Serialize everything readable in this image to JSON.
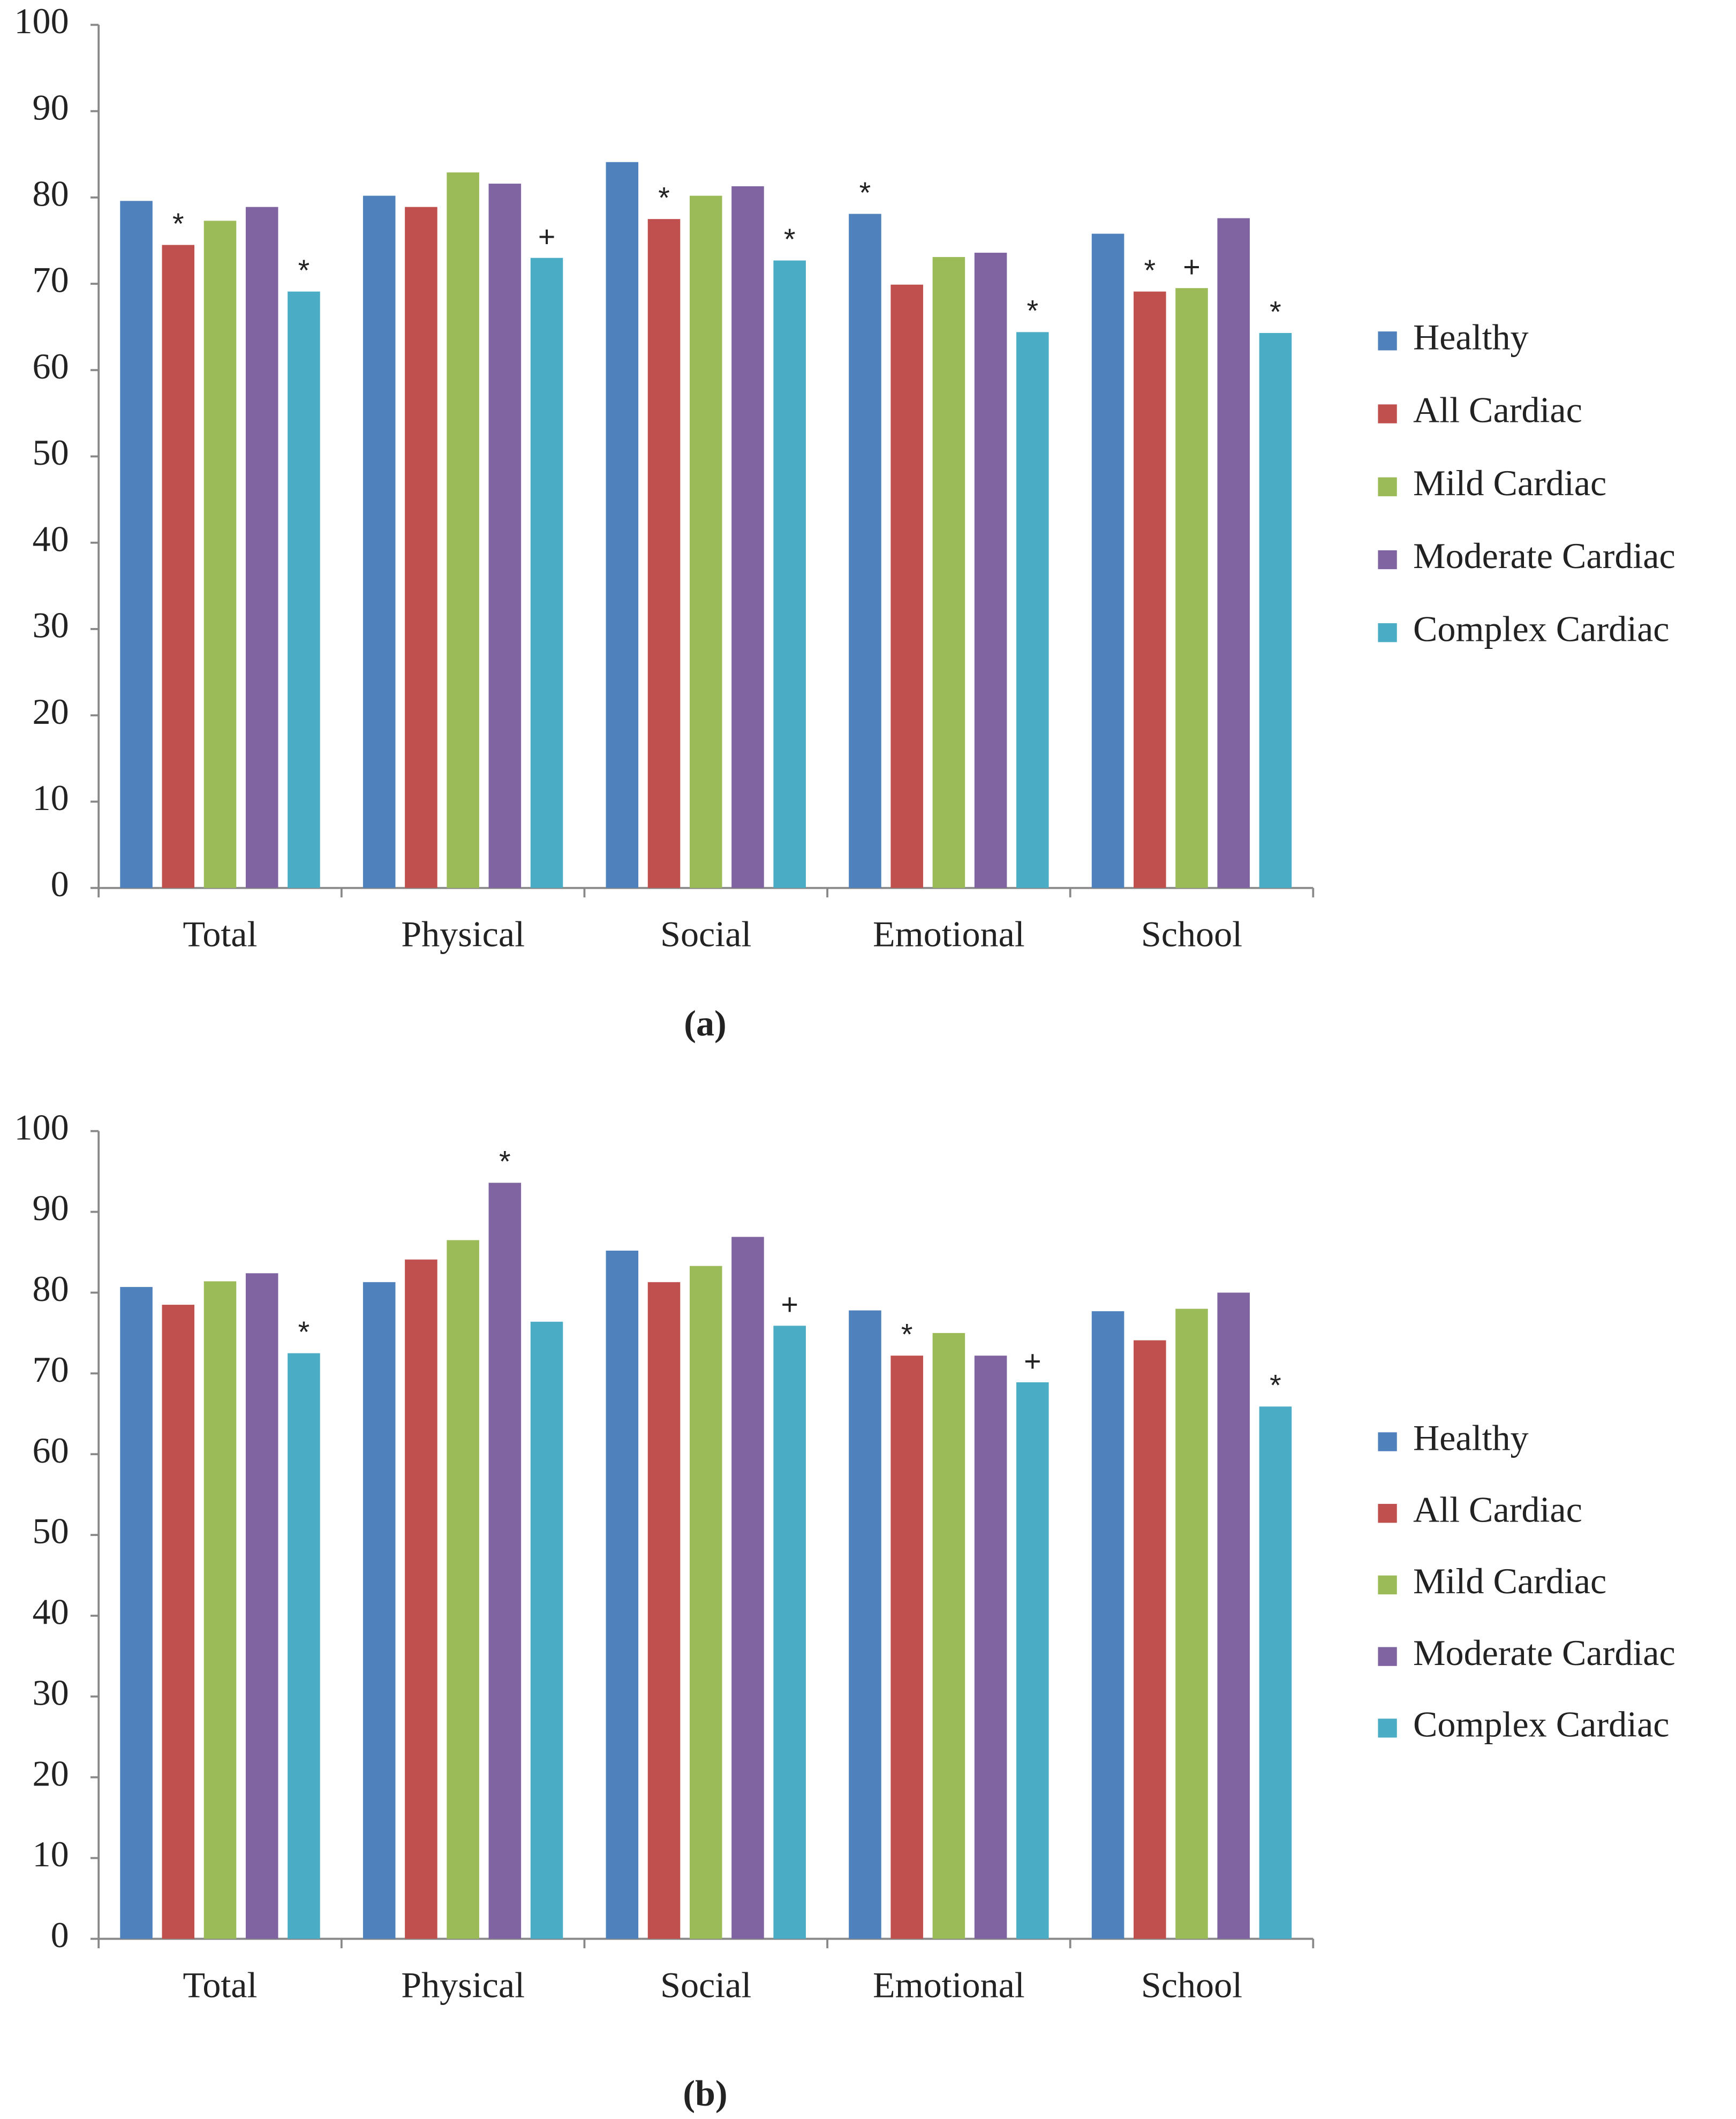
{
  "chart_data": [
    {
      "type": "bar",
      "caption": "(a)",
      "categories": [
        "Total",
        "Physical",
        "Social",
        "Emotional",
        "School"
      ],
      "ylim": [
        0,
        100
      ],
      "yticks": [
        0,
        10,
        20,
        30,
        40,
        50,
        60,
        70,
        80,
        90,
        100
      ],
      "series": [
        {
          "name": "Healthy",
          "color": "#4f81bd",
          "values": [
            79.6,
            80.2,
            84.1,
            78.1,
            75.8
          ],
          "markers": [
            null,
            null,
            null,
            "*",
            null
          ]
        },
        {
          "name": "All Cardiac",
          "color": "#c0504d",
          "values": [
            74.5,
            78.9,
            77.5,
            69.9,
            69.1
          ],
          "markers": [
            "*",
            null,
            "*",
            null,
            "*"
          ]
        },
        {
          "name": "Mild Cardiac",
          "color": "#9bbb59",
          "values": [
            77.3,
            82.9,
            80.2,
            73.1,
            69.5
          ],
          "markers": [
            null,
            null,
            null,
            null,
            "+"
          ]
        },
        {
          "name": "Moderate Cardiac",
          "color": "#8064a2",
          "values": [
            78.9,
            81.6,
            81.3,
            73.6,
            77.6
          ],
          "markers": [
            null,
            null,
            null,
            null,
            null
          ]
        },
        {
          "name": "Complex Cardiac",
          "color": "#4bacc6",
          "values": [
            69.1,
            73.0,
            72.7,
            64.4,
            64.3
          ],
          "markers": [
            "*",
            "+",
            "*",
            "*",
            "*"
          ]
        }
      ]
    },
    {
      "type": "bar",
      "caption": "(b)",
      "categories": [
        "Total",
        "Physical",
        "Social",
        "Emotional",
        "School"
      ],
      "ylim": [
        0,
        100
      ],
      "yticks": [
        0,
        10,
        20,
        30,
        40,
        50,
        60,
        70,
        80,
        90,
        100
      ],
      "series": [
        {
          "name": "Healthy",
          "color": "#4f81bd",
          "values": [
            80.7,
            81.3,
            85.2,
            77.8,
            77.7
          ],
          "markers": [
            null,
            null,
            null,
            null,
            null
          ]
        },
        {
          "name": "All Cardiac",
          "color": "#c0504d",
          "values": [
            78.5,
            84.1,
            81.3,
            72.2,
            74.1
          ],
          "markers": [
            null,
            null,
            null,
            "*",
            null
          ]
        },
        {
          "name": "Mild Cardiac",
          "color": "#9bbb59",
          "values": [
            81.4,
            86.5,
            83.3,
            75.0,
            78.0
          ],
          "markers": [
            null,
            null,
            null,
            null,
            null
          ]
        },
        {
          "name": "Moderate Cardiac",
          "color": "#8064a2",
          "values": [
            82.4,
            93.6,
            86.9,
            72.2,
            80.0
          ],
          "markers": [
            null,
            "*",
            null,
            null,
            null
          ]
        },
        {
          "name": "Complex Cardiac",
          "color": "#4bacc6",
          "values": [
            72.5,
            76.4,
            75.9,
            68.9,
            65.9
          ],
          "markers": [
            "*",
            null,
            "+",
            "+",
            "*"
          ]
        }
      ]
    }
  ]
}
